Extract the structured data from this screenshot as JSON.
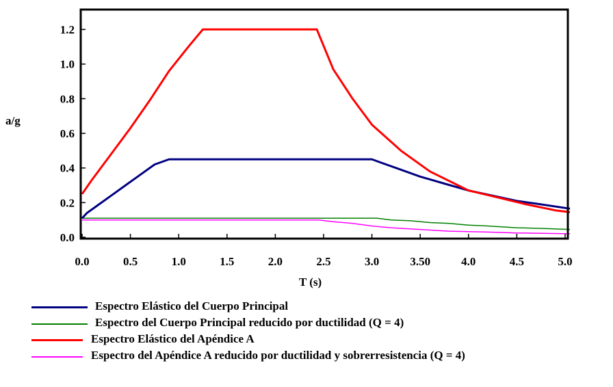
{
  "chart_data": {
    "type": "line",
    "title": "",
    "xlabel": "T (s)",
    "ylabel": "a/g",
    "xlim": [
      0,
      5.05
    ],
    "ylim": [
      0,
      1.22
    ],
    "x_ticks": [
      0,
      0.5,
      1.0,
      1.5,
      2.0,
      2.5,
      3.0,
      3.5,
      4.0,
      4.5,
      5.0
    ],
    "x_tick_labels": [
      "0.0",
      "0.5",
      "1.0",
      "1.5",
      "2.0",
      "2.5",
      "3.0",
      "3.50",
      "4.0",
      "4.5",
      "5.0"
    ],
    "y_ticks": [
      0,
      0.2,
      0.4,
      0.6,
      0.8,
      1.0,
      1.2
    ],
    "y_tick_labels": [
      "0.0",
      "0.2",
      "0.4",
      "0.6",
      "0.8",
      "1.0",
      "1.2"
    ],
    "grid": false,
    "legend_position": "bottom",
    "series": [
      {
        "name": "Espectro Elástico del Cuerpo Principal",
        "color": "#000080",
        "width": 3,
        "x": [
          0.0,
          0.05,
          0.15,
          0.3,
          0.45,
          0.6,
          0.75,
          0.9,
          1.0,
          1.5,
          2.0,
          2.5,
          3.0,
          3.1,
          3.3,
          3.5,
          3.75,
          4.0,
          4.25,
          4.5,
          4.75,
          5.05
        ],
        "y": [
          0.11,
          0.14,
          0.18,
          0.24,
          0.3,
          0.36,
          0.42,
          0.45,
          0.45,
          0.45,
          0.45,
          0.45,
          0.45,
          0.43,
          0.39,
          0.35,
          0.31,
          0.27,
          0.24,
          0.21,
          0.19,
          0.165
        ]
      },
      {
        "name": "Espectro del Cuerpo Principal reducido por ductilidad (Q = 4)",
        "color": "#008000",
        "width": 1.5,
        "x": [
          0.0,
          3.05,
          3.2,
          3.4,
          3.6,
          3.8,
          4.0,
          4.2,
          4.5,
          4.8,
          5.05
        ],
        "y": [
          0.11,
          0.11,
          0.1,
          0.095,
          0.085,
          0.08,
          0.07,
          0.065,
          0.055,
          0.05,
          0.045
        ]
      },
      {
        "name": "Espectro Elástico del Apéndice A",
        "color": "#ff0000",
        "width": 3,
        "x": [
          0.0,
          0.1,
          0.3,
          0.5,
          0.7,
          0.9,
          1.1,
          1.25,
          1.5,
          2.0,
          2.43,
          2.6,
          2.8,
          3.0,
          3.3,
          3.6,
          4.0,
          4.3,
          4.6,
          4.9,
          5.05
        ],
        "y": [
          0.25,
          0.33,
          0.48,
          0.63,
          0.79,
          0.96,
          1.1,
          1.2,
          1.2,
          1.2,
          1.2,
          0.97,
          0.8,
          0.65,
          0.5,
          0.38,
          0.27,
          0.23,
          0.19,
          0.155,
          0.145
        ]
      },
      {
        "name": "Espectro del Apéndice A reducido por ductilidad y sobrerresistencia (Q = 4)",
        "color": "#ff00ff",
        "width": 1.5,
        "x": [
          0.0,
          2.45,
          2.6,
          2.8,
          3.0,
          3.2,
          3.5,
          3.8,
          4.2,
          4.5,
          5.05
        ],
        "y": [
          0.1,
          0.1,
          0.09,
          0.08,
          0.065,
          0.055,
          0.045,
          0.035,
          0.03,
          0.025,
          0.02
        ]
      }
    ]
  }
}
